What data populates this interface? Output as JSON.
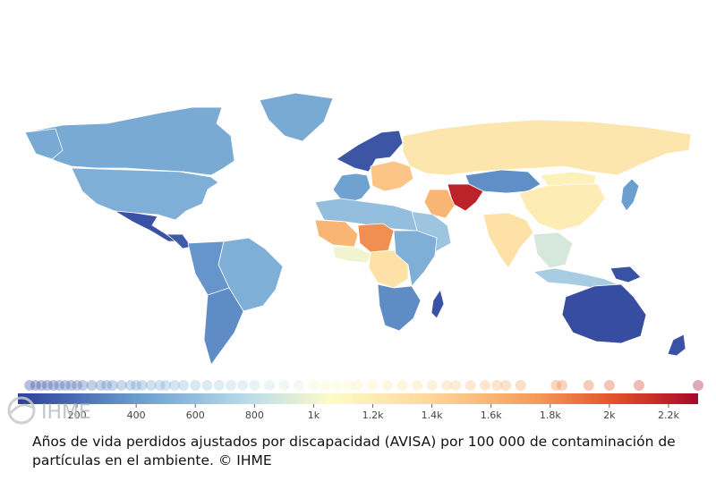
{
  "caption": {
    "line1": "Años de vida perdidos ajustados por discapacidad (AVISA) por 100 000 de contaminación de",
    "line2": "partículas en el ambiente. © IHME"
  },
  "logo": {
    "text": "IHME"
  },
  "colors": {
    "low": "#2e3f99",
    "mid_low": "#6b9fcf",
    "light_blue": "#bcdcea",
    "pale": "#fdfbc8",
    "light_orange": "#fdd99b",
    "orange": "#f59c5a",
    "red_orange": "#e0502a",
    "dark_red": "#a6082a"
  },
  "legend": {
    "scale_min": 0,
    "scale_max": 2300,
    "ticks": [
      {
        "value": 200,
        "label": "200"
      },
      {
        "value": 400,
        "label": "400"
      },
      {
        "value": 600,
        "label": "600"
      },
      {
        "value": 800,
        "label": "800"
      },
      {
        "value": 1000,
        "label": "1k"
      },
      {
        "value": 1200,
        "label": "1.2k"
      },
      {
        "value": 1400,
        "label": "1.4k"
      },
      {
        "value": 1600,
        "label": "1.6k"
      },
      {
        "value": 1800,
        "label": "1.8k"
      },
      {
        "value": 2000,
        "label": "2k"
      },
      {
        "value": 2200,
        "label": "2.2k"
      }
    ],
    "distribution_values": [
      40,
      60,
      80,
      100,
      120,
      140,
      160,
      180,
      200,
      220,
      250,
      280,
      300,
      320,
      350,
      380,
      400,
      420,
      450,
      480,
      500,
      530,
      560,
      600,
      640,
      680,
      720,
      760,
      800,
      850,
      900,
      950,
      1000,
      1040,
      1080,
      1120,
      1150,
      1200,
      1250,
      1300,
      1350,
      1400,
      1450,
      1480,
      1530,
      1580,
      1620,
      1650,
      1700,
      1820,
      1840,
      1930,
      2000,
      2100,
      2300
    ]
  },
  "chart_data": {
    "type": "choropleth",
    "title": "",
    "legend_unit": "AVISA por 100 000",
    "regions": [
      {
        "name": "Canada",
        "level": 470
      },
      {
        "name": "Alaska",
        "level": 470
      },
      {
        "name": "United States",
        "level": 500
      },
      {
        "name": "Mexico",
        "level": 80
      },
      {
        "name": "Central America",
        "level": 120
      },
      {
        "name": "Greenland",
        "level": 470
      },
      {
        "name": "Brazil",
        "level": 500
      },
      {
        "name": "Andean South America",
        "level": 360
      },
      {
        "name": "Southern South America",
        "level": 320
      },
      {
        "name": "Scandinavia",
        "level": 90
      },
      {
        "name": "Western Europe",
        "level": 420
      },
      {
        "name": "Eastern Europe",
        "level": 1500
      },
      {
        "name": "Russia",
        "level": 1250
      },
      {
        "name": "Kazakhstan",
        "level": 330
      },
      {
        "name": "Central Asia",
        "level": 2200
      },
      {
        "name": "China",
        "level": 1200
      },
      {
        "name": "Mongolia",
        "level": 1150
      },
      {
        "name": "India",
        "level": 1300
      },
      {
        "name": "Iran",
        "level": 1600
      },
      {
        "name": "Arabian Peninsula",
        "level": 650
      },
      {
        "name": "North Africa",
        "level": 600
      },
      {
        "name": "Sahel West",
        "level": 1600
      },
      {
        "name": "Niger",
        "level": 1800
      },
      {
        "name": "West Africa Coast",
        "level": 1000
      },
      {
        "name": "Central Africa",
        "level": 1300
      },
      {
        "name": "East Africa",
        "level": 500
      },
      {
        "name": "Southern Africa",
        "level": 320
      },
      {
        "name": "Madagascar",
        "level": 80
      },
      {
        "name": "Southeast Asia",
        "level": 900
      },
      {
        "name": "Indonesia",
        "level": 700
      },
      {
        "name": "Papua New Guinea",
        "level": 80
      },
      {
        "name": "Australia",
        "level": 60
      },
      {
        "name": "New Zealand",
        "level": 80
      },
      {
        "name": "Japan",
        "level": 400
      }
    ]
  }
}
